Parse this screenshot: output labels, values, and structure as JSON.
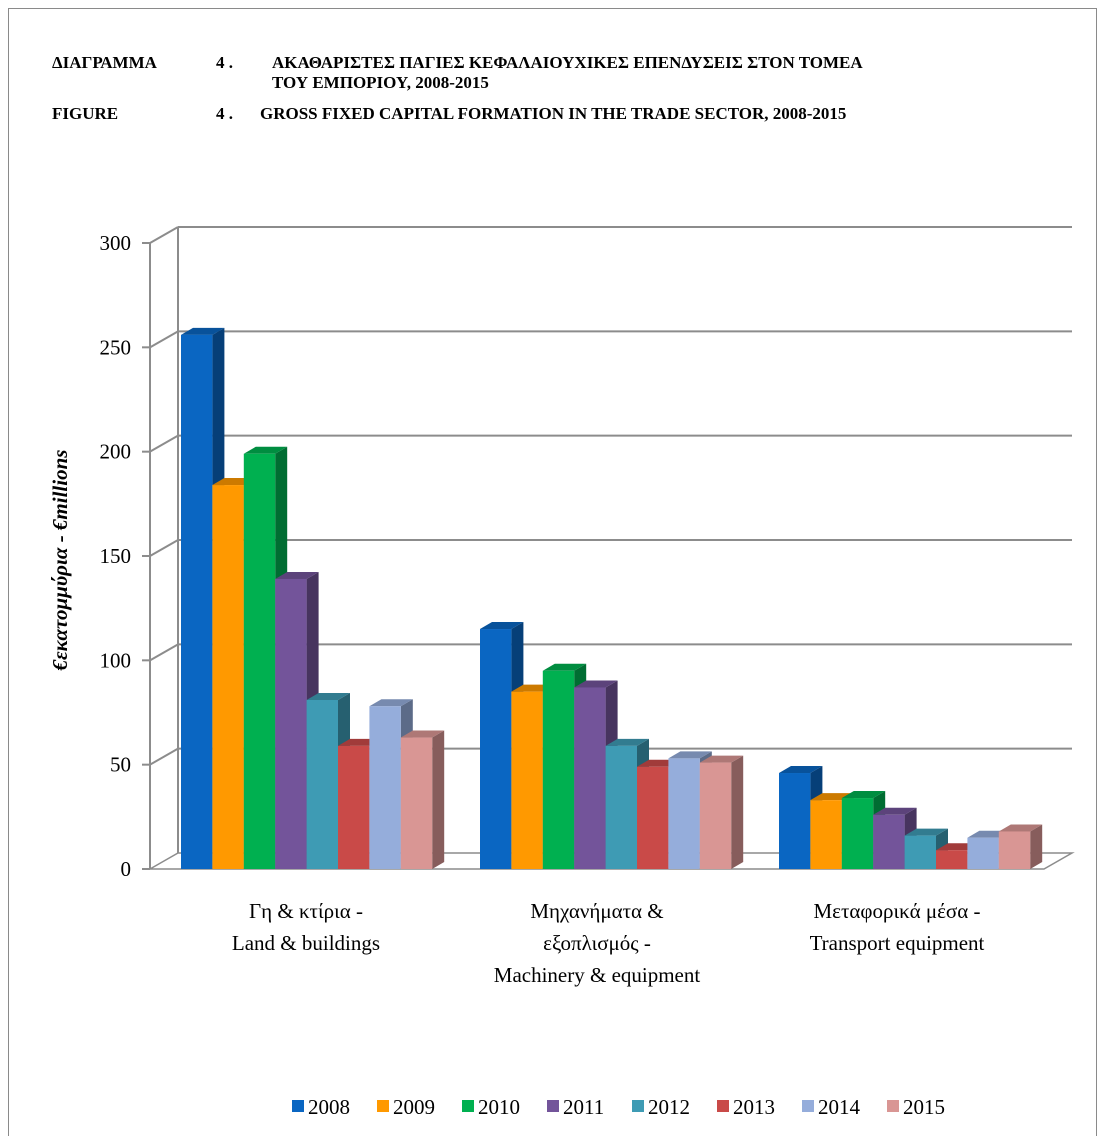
{
  "header": {
    "line1_label": "ΔΙΑΓΡΑΜΜΑ",
    "line1_num": "4 .",
    "line1_text": "ΑΚΑΘΑΡΙΣΤΕΣ ΠΑΓΙΕΣ ΚΕΦΑΛΑΙΟΥΧΙΚΕΣ ΕΠΕΝΔΥΣΕΙΣ ΣΤΟΝ ΤΟΜΕΑ",
    "line1_cont": "ΤΟΥ ΕΜΠΟΡΙΟΥ, 2008-2015",
    "line2_label": "FIGURE",
    "line2_num": "4 .",
    "line2_text": "GROSS FIXED CAPITAL FORMATION IN THE TRADE SECTOR, 2008-2015"
  },
  "chart_data": {
    "type": "bar",
    "ylabel": "€εκατομμύρια - €millions",
    "xlabel": "",
    "ylim": [
      0,
      300
    ],
    "yticks": [
      0,
      50,
      100,
      150,
      200,
      250,
      300
    ],
    "grid": true,
    "legend_position": "bottom",
    "categories": [
      [
        "Γη & κτίρια -",
        "Land & buildings"
      ],
      [
        "Μηχανήματα &",
        "εξοπλισμός -",
        "Machinery & equipment"
      ],
      [
        "Μεταφορικά μέσα -",
        "Transport equipment"
      ]
    ],
    "series": [
      {
        "name": "2008",
        "color": "#0a66c2",
        "values": [
          256,
          115,
          46
        ]
      },
      {
        "name": "2009",
        "color": "#ff9900",
        "values": [
          184,
          85,
          33
        ]
      },
      {
        "name": "2010",
        "color": "#00b050",
        "values": [
          199,
          95,
          34
        ]
      },
      {
        "name": "2011",
        "color": "#73549a",
        "values": [
          139,
          87,
          26
        ]
      },
      {
        "name": "2012",
        "color": "#3e9bb4",
        "values": [
          81,
          59,
          16
        ]
      },
      {
        "name": "2013",
        "color": "#c94a48",
        "values": [
          59,
          49,
          9
        ]
      },
      {
        "name": "2014",
        "color": "#95addb",
        "values": [
          78,
          53,
          15
        ]
      },
      {
        "name": "2015",
        "color": "#d99694",
        "values": [
          63,
          51,
          18
        ]
      }
    ]
  }
}
